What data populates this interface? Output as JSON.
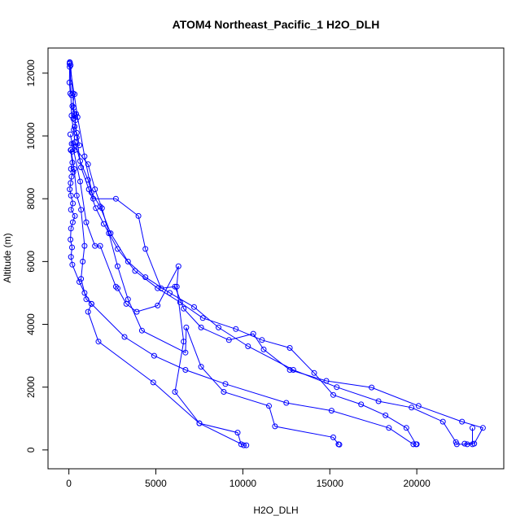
{
  "chart_data": {
    "type": "scatter",
    "title": "ATOM4 Northeast_Pacific_1 H2O_DLH",
    "xlabel": "H2O_DLH",
    "ylabel": "Altitude (m)",
    "xlim": [
      -1200,
      25000
    ],
    "ylim": [
      -600,
      12800
    ],
    "xticks": [
      0,
      5000,
      10000,
      15000,
      20000
    ],
    "yticks": [
      0,
      2000,
      4000,
      6000,
      8000,
      10000,
      12000
    ],
    "point_style": "open-circle",
    "connected": true,
    "color": "#0000ff",
    "grid": false,
    "legend": "none",
    "series": [
      {
        "points": [
          [
            50,
            12350
          ],
          [
            45,
            12200
          ],
          [
            30,
            11700
          ],
          [
            80,
            11350
          ],
          [
            150,
            11300
          ],
          [
            240,
            11350
          ],
          [
            330,
            11330
          ],
          [
            200,
            10950
          ],
          [
            300,
            10700
          ],
          [
            250,
            10550
          ],
          [
            350,
            10650
          ],
          [
            420,
            10700
          ],
          [
            380,
            10500
          ],
          [
            330,
            10300
          ],
          [
            280,
            10200
          ],
          [
            450,
            10100
          ],
          [
            600,
            9700
          ],
          [
            250,
            9750
          ],
          [
            350,
            9550
          ],
          [
            200,
            9500
          ],
          [
            100,
            9550
          ],
          [
            200,
            9150
          ],
          [
            120,
            8950
          ],
          [
            250,
            8850
          ],
          [
            150,
            8700
          ],
          [
            100,
            8500
          ],
          [
            50,
            8300
          ],
          [
            120,
            8100
          ],
          [
            230,
            7850
          ],
          [
            120,
            7650
          ],
          [
            350,
            7450
          ],
          [
            220,
            7250
          ],
          [
            120,
            7050
          ],
          [
            90,
            6700
          ],
          [
            180,
            6450
          ],
          [
            120,
            6150
          ],
          [
            200,
            5900
          ],
          [
            600,
            5350
          ],
          [
            900,
            5000
          ],
          [
            1300,
            4650
          ],
          [
            1100,
            4400
          ],
          [
            1700,
            3450
          ],
          [
            4850,
            2150
          ],
          [
            7500,
            850
          ],
          [
            10050,
            150
          ],
          [
            10200,
            150
          ]
        ]
      },
      {
        "points": [
          [
            60,
            12330
          ],
          [
            150,
            10650
          ],
          [
            350,
            9800
          ],
          [
            650,
            9200
          ],
          [
            1100,
            8600
          ],
          [
            1300,
            8200
          ],
          [
            1800,
            7750
          ],
          [
            2400,
            6900
          ],
          [
            3400,
            6000
          ],
          [
            4400,
            5500
          ],
          [
            5800,
            5000
          ],
          [
            7200,
            4550
          ],
          [
            8600,
            3900
          ],
          [
            10300,
            3300
          ],
          [
            12900,
            2550
          ],
          [
            15400,
            2000
          ],
          [
            17800,
            1550
          ],
          [
            19700,
            1350
          ],
          [
            21500,
            900
          ],
          [
            22250,
            250
          ],
          [
            22300,
            180
          ],
          [
            22900,
            180
          ],
          [
            23200,
            180
          ],
          [
            23200,
            700
          ]
        ]
      },
      {
        "points": [
          [
            100,
            12250
          ],
          [
            280,
            10900
          ],
          [
            450,
            9950
          ],
          [
            700,
            9000
          ],
          [
            1150,
            8300
          ],
          [
            1550,
            7700
          ],
          [
            2000,
            7200
          ],
          [
            2800,
            6400
          ],
          [
            3800,
            5700
          ],
          [
            5100,
            5150
          ],
          [
            6400,
            4700
          ],
          [
            7700,
            4200
          ],
          [
            9600,
            3850
          ],
          [
            11100,
            3500
          ],
          [
            12700,
            3250
          ],
          [
            14100,
            2450
          ],
          [
            15200,
            1750
          ],
          [
            16800,
            1450
          ],
          [
            18200,
            1100
          ],
          [
            19400,
            700
          ],
          [
            19950,
            180
          ],
          [
            20000,
            180
          ]
        ]
      },
      {
        "points": [
          [
            40,
            12300
          ],
          [
            500,
            10600
          ],
          [
            900,
            9350
          ],
          [
            1400,
            8000
          ],
          [
            2700,
            8000
          ],
          [
            4000,
            7450
          ],
          [
            4400,
            6400
          ],
          [
            5300,
            5150
          ],
          [
            6100,
            5200
          ],
          [
            6600,
            4500
          ],
          [
            7600,
            3900
          ],
          [
            9200,
            3500
          ],
          [
            10600,
            3700
          ],
          [
            11200,
            3200
          ],
          [
            12700,
            2550
          ],
          [
            14800,
            2200
          ],
          [
            17400,
            1990
          ],
          [
            20100,
            1400
          ],
          [
            22600,
            900
          ],
          [
            23800,
            700
          ],
          [
            23300,
            200
          ],
          [
            22750,
            200
          ]
        ]
      },
      {
        "points": [
          [
            160,
            9750
          ],
          [
            1100,
            9100
          ],
          [
            1500,
            8300
          ],
          [
            1900,
            7700
          ],
          [
            2300,
            6900
          ],
          [
            2800,
            5850
          ],
          [
            3400,
            4800
          ],
          [
            4200,
            3800
          ],
          [
            6700,
            3100
          ],
          [
            6750,
            3900
          ],
          [
            7600,
            2650
          ],
          [
            8900,
            1850
          ],
          [
            11500,
            1400
          ],
          [
            11850,
            750
          ],
          [
            15200,
            400
          ],
          [
            15500,
            180
          ],
          [
            15550,
            170
          ]
        ]
      },
      {
        "points": [
          [
            80,
            10050
          ],
          [
            650,
            8550
          ],
          [
            1000,
            7250
          ],
          [
            1500,
            6500
          ],
          [
            1800,
            6500
          ],
          [
            2700,
            5200
          ],
          [
            2800,
            5150
          ],
          [
            3300,
            4650
          ],
          [
            3900,
            4400
          ],
          [
            5100,
            4600
          ],
          [
            6300,
            5850
          ],
          [
            6200,
            5200
          ],
          [
            6600,
            3450
          ],
          [
            6100,
            1850
          ],
          [
            7500,
            850
          ],
          [
            9700,
            550
          ],
          [
            9900,
            180
          ]
        ]
      },
      {
        "points": [
          [
            120,
            9550
          ],
          [
            300,
            8950
          ],
          [
            450,
            8100
          ],
          [
            700,
            7650
          ],
          [
            900,
            6500
          ],
          [
            800,
            6000
          ],
          [
            700,
            5450
          ],
          [
            1000,
            4800
          ],
          [
            1300,
            4650
          ],
          [
            3200,
            3600
          ],
          [
            4900,
            3000
          ],
          [
            6700,
            2550
          ],
          [
            9000,
            2100
          ],
          [
            12500,
            1500
          ],
          [
            15100,
            1250
          ],
          [
            18400,
            700
          ],
          [
            19800,
            180
          ]
        ]
      }
    ]
  }
}
